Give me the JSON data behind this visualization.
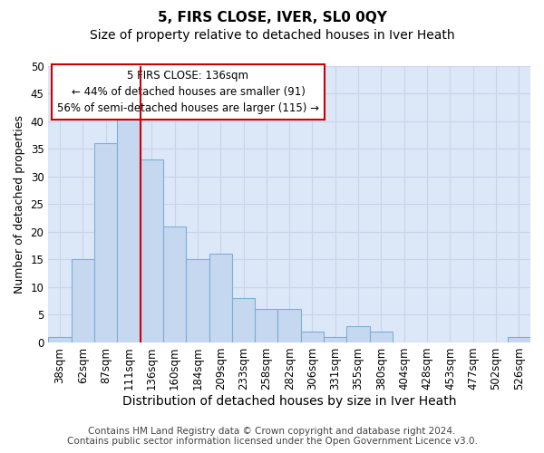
{
  "title": "5, FIRS CLOSE, IVER, SL0 0QY",
  "subtitle": "Size of property relative to detached houses in Iver Heath",
  "xlabel": "Distribution of detached houses by size in Iver Heath",
  "ylabel": "Number of detached properties",
  "categories": [
    "38sqm",
    "62sqm",
    "87sqm",
    "111sqm",
    "136sqm",
    "160sqm",
    "184sqm",
    "209sqm",
    "233sqm",
    "258sqm",
    "282sqm",
    "306sqm",
    "331sqm",
    "355sqm",
    "380sqm",
    "404sqm",
    "428sqm",
    "453sqm",
    "477sqm",
    "502sqm",
    "526sqm"
  ],
  "values": [
    1,
    15,
    36,
    41,
    33,
    21,
    15,
    16,
    8,
    6,
    6,
    2,
    1,
    3,
    2,
    0,
    0,
    0,
    0,
    0,
    1
  ],
  "bar_color": "#c5d8f0",
  "bar_edge_color": "#7bafd4",
  "vline_color": "#cc0000",
  "annotation_text": "5 FIRS CLOSE: 136sqm\n← 44% of detached houses are smaller (91)\n56% of semi-detached houses are larger (115) →",
  "annotation_box_color": "#ffffff",
  "annotation_box_edge_color": "#cc0000",
  "ylim": [
    0,
    50
  ],
  "yticks": [
    0,
    5,
    10,
    15,
    20,
    25,
    30,
    35,
    40,
    45,
    50
  ],
  "grid_color": "#c8d4e8",
  "background_color": "#dce8f8",
  "footer_line1": "Contains HM Land Registry data © Crown copyright and database right 2024.",
  "footer_line2": "Contains public sector information licensed under the Open Government Licence v3.0.",
  "title_fontsize": 11,
  "subtitle_fontsize": 10,
  "xlabel_fontsize": 10,
  "ylabel_fontsize": 9,
  "tick_fontsize": 8.5,
  "footer_fontsize": 7.5
}
